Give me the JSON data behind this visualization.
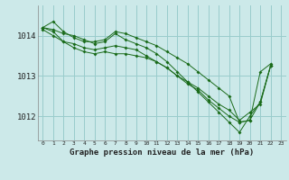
{
  "title": "Graphe pression niveau de la mer (hPa)",
  "bg_color": "#cce9e9",
  "line_color": "#1a6b1a",
  "grid_color": "#99cccc",
  "ylabel_values": [
    1012,
    1013,
    1014
  ],
  "xlim": [
    -0.5,
    23.5
  ],
  "ylim": [
    1011.4,
    1014.75
  ],
  "series": [
    [
      1014.2,
      1014.35,
      1014.1,
      1013.95,
      1013.85,
      1013.85,
      1013.9,
      1014.1,
      1014.05,
      1013.95,
      1013.85,
      1013.75,
      1013.6,
      1013.45,
      1013.3,
      1013.1,
      1012.9,
      1012.7,
      1012.5,
      1011.85,
      1011.9,
      1013.1,
      1013.3,
      null
    ],
    [
      1014.2,
      1014.1,
      1013.85,
      1013.7,
      1013.6,
      1013.55,
      1013.6,
      1013.55,
      1013.55,
      1013.5,
      1013.45,
      1013.35,
      1013.2,
      1013.0,
      1012.85,
      1012.7,
      1012.5,
      1012.3,
      1012.15,
      1011.9,
      1012.1,
      1012.3,
      1013.25,
      null
    ],
    [
      1014.2,
      1014.15,
      1014.05,
      1014.0,
      1013.9,
      1013.8,
      1013.85,
      1014.05,
      1013.9,
      1013.8,
      1013.7,
      1013.55,
      1013.35,
      1013.1,
      1012.85,
      1012.6,
      1012.35,
      1012.1,
      1011.85,
      1011.6,
      1012.0,
      1012.35,
      1013.25,
      null
    ],
    [
      1014.15,
      1014.0,
      1013.85,
      1013.8,
      1013.7,
      1013.65,
      1013.7,
      1013.75,
      1013.7,
      1013.65,
      1013.5,
      1013.35,
      1013.2,
      1013.0,
      1012.8,
      1012.65,
      1012.4,
      1012.2,
      1012.0,
      1011.85,
      1011.9,
      1012.35,
      1013.25,
      null
    ]
  ],
  "xtick_labels": [
    "0",
    "1",
    "2",
    "3",
    "4",
    "5",
    "6",
    "7",
    "8",
    "9",
    "10",
    "11",
    "12",
    "13",
    "14",
    "15",
    "16",
    "17",
    "18",
    "19",
    "20",
    "21",
    "22",
    "23"
  ]
}
